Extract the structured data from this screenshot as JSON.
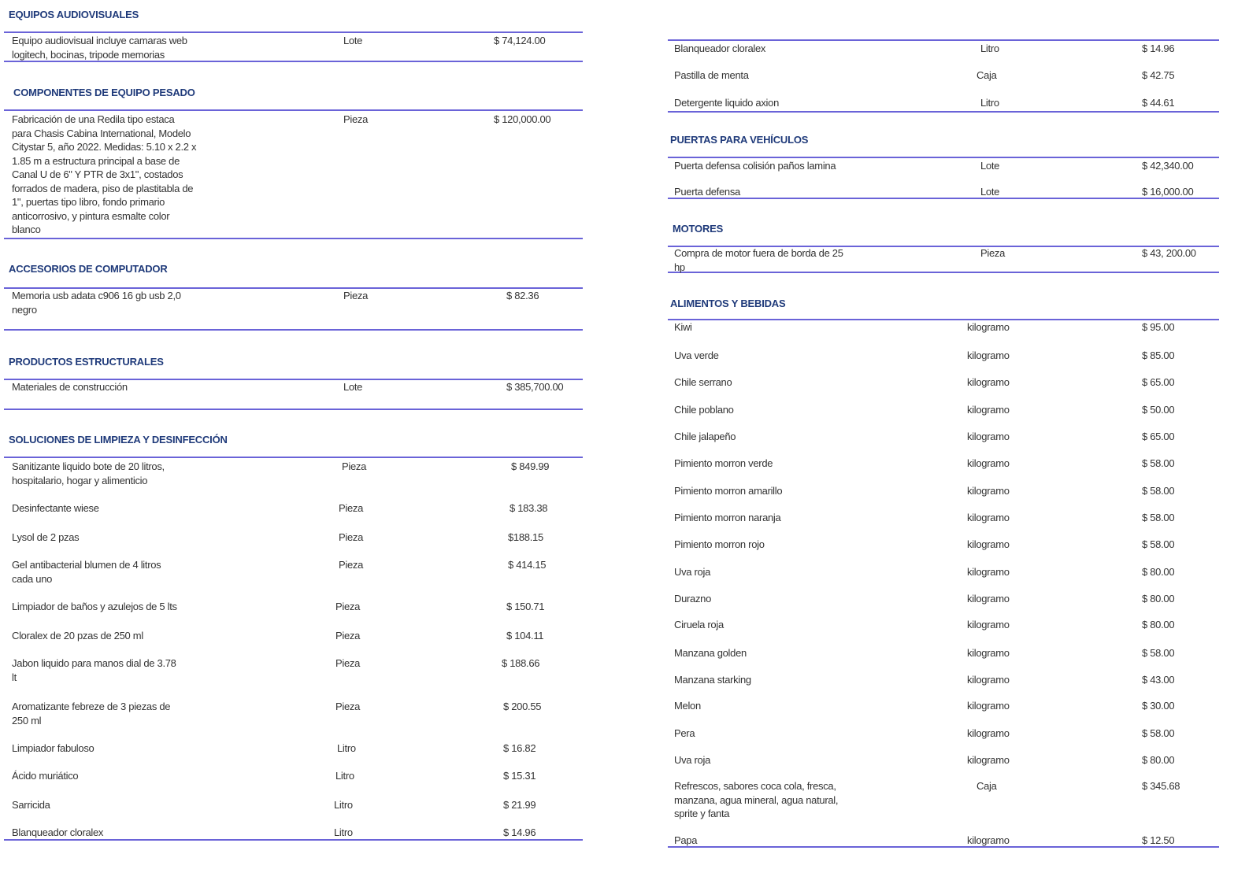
{
  "left": [
    {
      "title": "EQUIPOS AUDIOVISUALES",
      "items": [
        {
          "desc": "Equipo audiovisual incluye camaras web\nlogitech, bocinas, tripode memorias",
          "unit": "Lote",
          "price": "$ 74,124.00"
        }
      ]
    },
    {
      "title": "COMPONENTES DE EQUIPO PESADO",
      "items": [
        {
          "desc": "Fabricación de una Redila tipo estaca\npara Chasis Cabina International, Modelo\nCitystar 5, año 2022. Medidas: 5.10 x 2.2 x\n1.85 m a estructura principal a base de\nCanal U de 6\" Y PTR de 3x1\", costados\nforrados de madera, piso de plastitabla de\n1\", puertas tipo libro, fondo primario\nanticorrosivo, y pintura esmalte color\nblanco",
          "unit": "Pieza",
          "price": "$ 120,000.00"
        }
      ]
    },
    {
      "title": "ACCESORIOS DE COMPUTADOR",
      "items": [
        {
          "desc": "Memoria usb adata c906 16 gb usb 2,0\nnegro",
          "unit": "Pieza",
          "price": "$ 82.36"
        }
      ]
    },
    {
      "title": "PRODUCTOS ESTRUCTURALES",
      "items": [
        {
          "desc": "Materiales de construcción",
          "unit": "Lote",
          "price": "$ 385,700.00"
        }
      ]
    },
    {
      "title": "SOLUCIONES DE LIMPIEZA Y DESINFECCIÓN",
      "items": [
        {
          "desc": "Sanitizante liquido bote de 20 litros,\nhospitalario, hogar y alimenticio",
          "unit": "Pieza",
          "price": "$ 849.99"
        },
        {
          "desc": "Desinfectante wiese",
          "unit": "Pieza",
          "price": "$ 183.38"
        },
        {
          "desc": "Lysol de 2 pzas",
          "unit": "Pieza",
          "price": "$188.15"
        },
        {
          "desc": "Gel antibacterial blumen de 4 litros\ncada uno",
          "unit": "Pieza",
          "price": "$ 414.15"
        },
        {
          "desc": "Limpiador de baños y azulejos de 5 lts",
          "unit": "Pieza",
          "price": "$ 150.71"
        },
        {
          "desc": "Cloralex de 20 pzas de 250 ml",
          "unit": "Pieza",
          "price": "$ 104.11"
        },
        {
          "desc": "Jabon liquido para manos dial de 3.78\nlt",
          "unit": "Pieza",
          "price": "$ 188.66"
        },
        {
          "desc": "Aromatizante febreze de 3 piezas de\n250 ml",
          "unit": "Pieza",
          "price": "$ 200.55"
        },
        {
          "desc": " Limpiador fabuloso",
          "unit": "Litro",
          "price": "$ 16.82"
        },
        {
          "desc": "Ácido muriático",
          "unit": "Litro",
          "price": "$ 15.31"
        },
        {
          "desc": "Sarricida",
          "unit": "Litro",
          "price": "$ 21.99"
        },
        {
          "desc": "Blanqueador cloralex",
          "unit": "Litro",
          "price": "$ 14.96"
        }
      ]
    }
  ],
  "right": [
    {
      "title": "",
      "items": [
        {
          "desc": "Blanqueador cloralex",
          "unit": "Litro",
          "price": "$ 14.96"
        },
        {
          "desc": "Pastilla de menta",
          "unit": "Caja",
          "price": "$ 42.75"
        },
        {
          "desc": "Detergente liquido axion",
          "unit": "Litro",
          "price": "$ 44.61"
        }
      ]
    },
    {
      "title": "PUERTAS PARA VEHÍCULOS",
      "items": [
        {
          "desc": "Puerta defensa colisión paños lamina",
          "unit": "Lote",
          "price": "$ 42,340.00"
        },
        {
          "desc": "Puerta defensa",
          "unit": "Lote",
          "price": "$ 16,000.00"
        }
      ]
    },
    {
      "title": "MOTORES",
      "items": [
        {
          "desc": "Compra de motor fuera de borda de 25\nhp",
          "unit": "Pieza",
          "price": "$ 43, 200.00"
        }
      ]
    },
    {
      "title": "ALIMENTOS Y BEBIDAS",
      "items": [
        {
          "desc": "Kiwi",
          "unit": "kilogramo",
          "price": "$ 95.00"
        },
        {
          "desc": "Uva verde",
          "unit": "kilogramo",
          "price": "$ 85.00"
        },
        {
          "desc": "Chile serrano",
          "unit": "kilogramo",
          "price": "$ 65.00"
        },
        {
          "desc": "Chile poblano",
          "unit": "kilogramo",
          "price": "$ 50.00"
        },
        {
          "desc": "Chile jalapeño",
          "unit": "kilogramo",
          "price": "$ 65.00"
        },
        {
          "desc": "Pimiento morron verde",
          "unit": "kilogramo",
          "price": "$ 58.00"
        },
        {
          "desc": "Pimiento morron amarillo",
          "unit": "kilogramo",
          "price": "$ 58.00"
        },
        {
          "desc": "Pimiento morron naranja",
          "unit": "kilogramo",
          "price": "$ 58.00"
        },
        {
          "desc": "Pimiento morron rojo",
          "unit": "kilogramo",
          "price": "$ 58.00"
        },
        {
          "desc": "Uva roja",
          "unit": "kilogramo",
          "price": "$ 80.00"
        },
        {
          "desc": "Durazno",
          "unit": "kilogramo",
          "price": "$ 80.00"
        },
        {
          "desc": "Ciruela roja",
          "unit": "kilogramo",
          "price": "$ 80.00"
        },
        {
          "desc": "Manzana golden",
          "unit": "kilogramo",
          "price": "$ 58.00"
        },
        {
          "desc": "Manzana starking",
          "unit": "kilogramo",
          "price": "$ 43.00"
        },
        {
          "desc": "Melon",
          "unit": "kilogramo",
          "price": "$ 30.00"
        },
        {
          "desc": "Pera",
          "unit": "kilogramo",
          "price": "$ 58.00"
        },
        {
          "desc": "Uva roja",
          "unit": "kilogramo",
          "price": "$ 80.00"
        },
        {
          "desc": "Refrescos, sabores coca cola, fresca,\nmanzana, agua mineral, agua natural,\nsprite y fanta",
          "unit": "Caja",
          "price": "$ 345.68"
        },
        {
          "desc": "Papa",
          "unit": "kilogramo",
          "price": "$ 12.50"
        }
      ]
    }
  ]
}
